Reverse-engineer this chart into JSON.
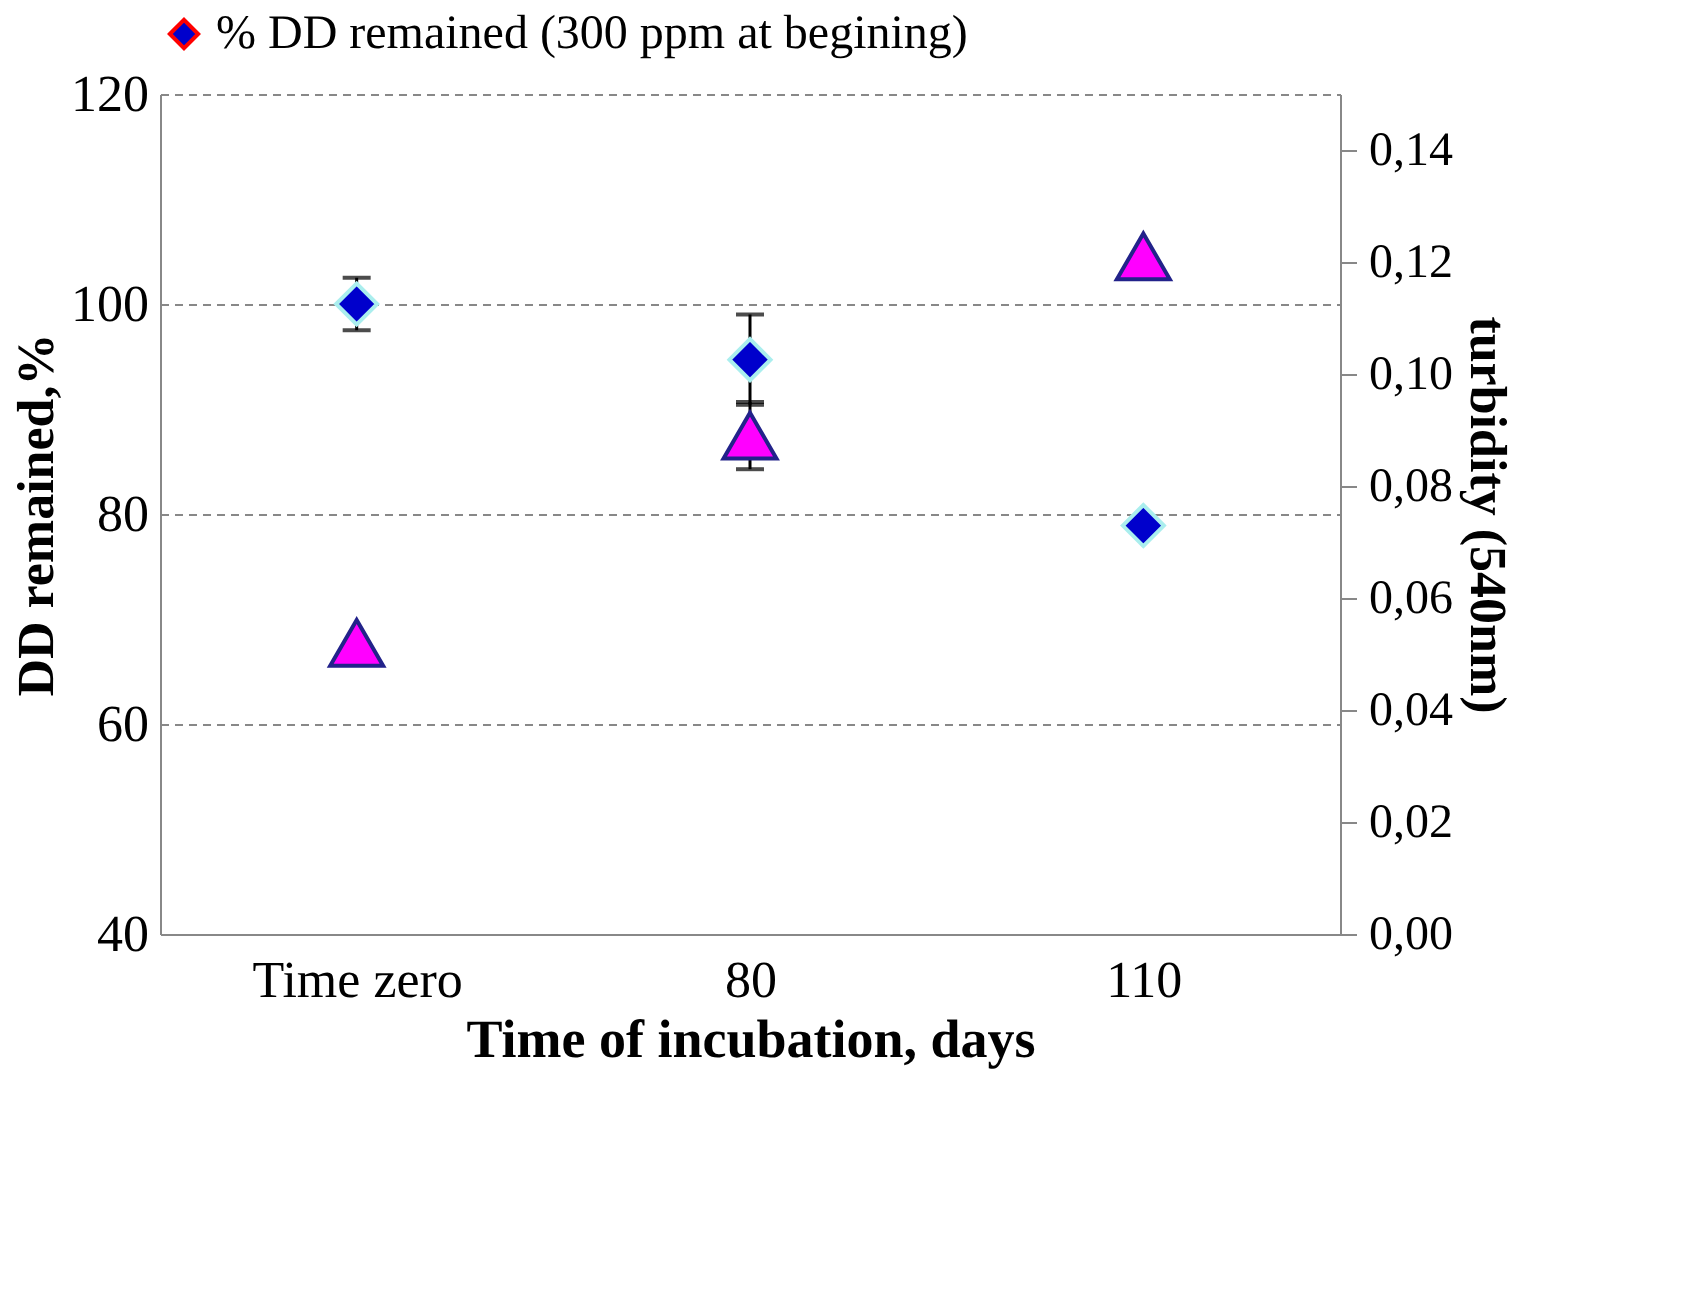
{
  "chart_data": {
    "type": "scatter",
    "xlabel": "Time of incubation, days",
    "ylabel": "DD remained,%",
    "y2label": "turbidity (540nm)",
    "categories": [
      "Time zero",
      "80",
      "110"
    ],
    "series": [
      {
        "name": "% DD remained (300 ppm at begining)",
        "color": "#0000cc",
        "marker": "diamond",
        "values": [
          100,
          94.7,
          78.9
        ],
        "errors": [
          2.5,
          4.3,
          null
        ]
      },
      {
        "color": "#ff00ff",
        "marker": "triangle",
        "axis": "y2",
        "values": [
          0.052,
          0.089,
          0.121
        ],
        "errors": [
          null,
          0.006,
          null
        ]
      }
    ],
    "ylim": [
      40,
      120
    ],
    "yticks": [
      40,
      60,
      80,
      100,
      120
    ],
    "y2lim": [
      0,
      0.15
    ],
    "y2ticks": [
      {
        "value": 0,
        "label": "0,00"
      },
      {
        "value": 0.02,
        "label": "0,02"
      },
      {
        "value": 0.04,
        "label": "0,04"
      },
      {
        "value": 0.06,
        "label": "0,06"
      },
      {
        "value": 0.08,
        "label": "0,08"
      },
      {
        "value": 0.1,
        "label": "0,10"
      },
      {
        "value": 0.12,
        "label": "0,12"
      },
      {
        "value": 0.14,
        "label": "0,14"
      }
    ],
    "grid": "y",
    "legend": "top"
  }
}
